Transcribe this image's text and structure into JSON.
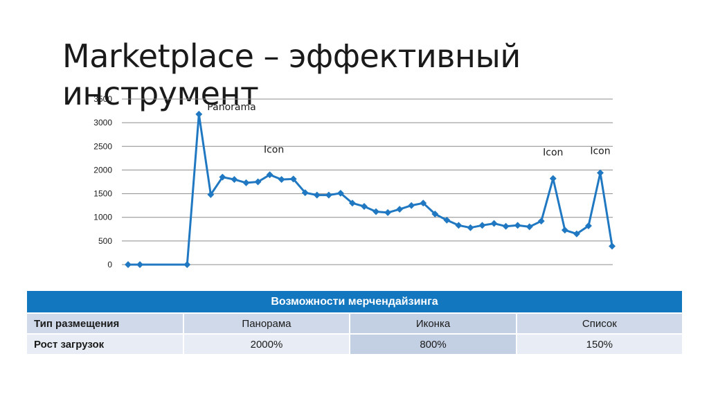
{
  "slide": {
    "title": "Marketplace – эффективный инструмент"
  },
  "chart_data": {
    "type": "line",
    "ylim": [
      0,
      3500
    ],
    "yticks": [
      0,
      500,
      1000,
      1500,
      2000,
      2500,
      3000,
      3500
    ],
    "grid": true,
    "color": "#1f78c1",
    "values": [
      0,
      0,
      null,
      null,
      null,
      0,
      3180,
      1480,
      1850,
      1800,
      1730,
      1750,
      1900,
      1800,
      1810,
      1520,
      1470,
      1470,
      1510,
      1300,
      1230,
      1120,
      1100,
      1170,
      1250,
      1300,
      1070,
      940,
      830,
      780,
      830,
      870,
      810,
      830,
      800,
      920,
      1820,
      730,
      650,
      820,
      1940,
      390
    ],
    "annotations": [
      {
        "text": "Panorama",
        "index": 6,
        "value": 3180
      },
      {
        "text": "Icon",
        "index": 12,
        "value": 1900
      },
      {
        "text": "Icon",
        "index": 36,
        "value": 1820
      },
      {
        "text": "Icon",
        "index": 40,
        "value": 1940
      }
    ]
  },
  "table": {
    "header": "Возможности мерчендайзинга",
    "rows": [
      {
        "label": "Тип размещения",
        "cells": [
          "Панорама",
          "Иконка",
          "Список"
        ]
      },
      {
        "label": "Рост загрузок",
        "cells": [
          "2000%",
          "800%",
          "150%"
        ]
      }
    ]
  }
}
